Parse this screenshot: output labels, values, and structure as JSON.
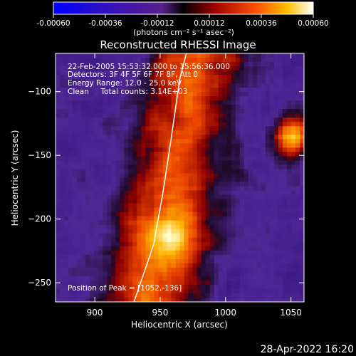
{
  "chart_data": {
    "type": "heatmap",
    "title": "Reconstructed RHESSI Image",
    "xlabel": "Heliocentric X (arcsec)",
    "ylabel": "Heliocentric Y (arcsec)",
    "xlim": [
      870,
      1060
    ],
    "ylim": [
      -265,
      -70
    ],
    "x_ticks": [
      900,
      950,
      1000,
      1050
    ],
    "y_ticks": [
      -100,
      -150,
      -200,
      -250
    ],
    "colorbar": {
      "ticks": [
        "-0.00060",
        "-0.00036",
        "-0.00012",
        "0.00012",
        "0.00036",
        "0.00060"
      ],
      "range": [
        -0.0006,
        0.0006
      ],
      "unit_label": "(photons cm⁻² s⁻¹ asec⁻²)"
    },
    "annotations": [
      "22-Feb-2005 15:53:32.000 to 15:56:36.000",
      "Detectors: 3F 4F 5F 6F 7F 8F, Att 0",
      "Energy Range: 12.0 - 25.0 keV",
      "Clean     Total counts: 3.14E+03"
    ],
    "peak_label": "Position of Peak = [1052,-136]",
    "peak": [
      1052,
      -136
    ],
    "limb_points": [
      [
        930,
        -265
      ],
      [
        945,
        -220
      ],
      [
        952,
        -180
      ],
      [
        958,
        -140
      ],
      [
        965,
        -90
      ],
      [
        970,
        -70
      ]
    ],
    "grid": false,
    "timestamp": "28-Apr-2022 16:20"
  }
}
